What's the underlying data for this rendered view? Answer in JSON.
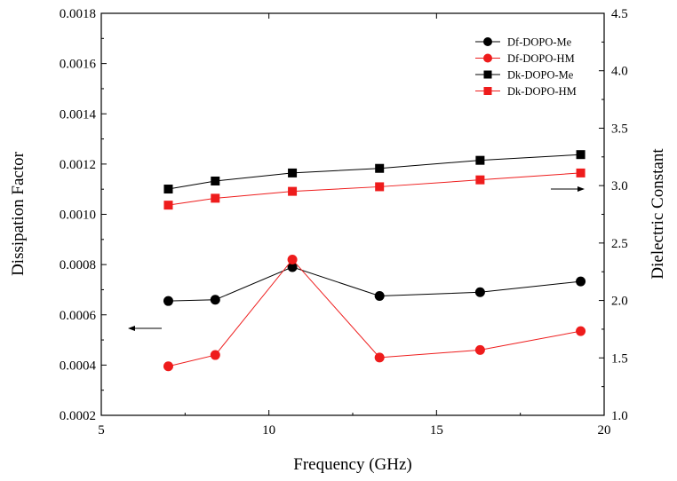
{
  "chart_data": {
    "type": "line",
    "title": "",
    "xlabel": "Frequency (GHz)",
    "ylabel_left": "Dissipation Factor",
    "ylabel_right": "Dielectric Constant",
    "xlim": [
      5,
      20
    ],
    "ylim_left": [
      0.0002,
      0.0018
    ],
    "ylim_right": [
      1.0,
      4.5
    ],
    "x_ticks": [
      "5",
      "10",
      "15",
      "20"
    ],
    "y_left_ticks": [
      "0.0002",
      "0.0004",
      "0.0006",
      "0.0008",
      "0.0010",
      "0.0012",
      "0.0014",
      "0.0016",
      "0.0018"
    ],
    "y_right_ticks": [
      "1.0",
      "1.5",
      "2.0",
      "2.5",
      "3.0",
      "3.5",
      "4.0",
      "4.5"
    ],
    "grid": false,
    "legend_position": "top-right",
    "x": [
      7.0,
      8.4,
      10.7,
      13.3,
      16.3,
      19.3
    ],
    "series": [
      {
        "name": "Df-DOPO-Me",
        "axis": "left",
        "marker": "circle",
        "color": "#000000",
        "values": [
          0.000655,
          0.00066,
          0.00079,
          0.000675,
          0.00069,
          0.000733
        ]
      },
      {
        "name": "Df-DOPO-HM",
        "axis": "left",
        "marker": "circle",
        "color": "#ee1c1c",
        "values": [
          0.000395,
          0.00044,
          0.00082,
          0.00043,
          0.00046,
          0.000535
        ]
      },
      {
        "name": "Dk-DOPO-Me",
        "axis": "right",
        "marker": "square",
        "color": "#000000",
        "values": [
          2.97,
          3.04,
          3.11,
          3.15,
          3.22,
          3.27
        ]
      },
      {
        "name": "Dk-DOPO-HM",
        "axis": "right",
        "marker": "square",
        "color": "#ee1c1c",
        "values": [
          2.83,
          2.89,
          2.95,
          2.99,
          3.05,
          3.11
        ]
      }
    ],
    "annotations": [
      {
        "type": "arrow",
        "direction": "left",
        "points_to": "left-axis"
      },
      {
        "type": "arrow",
        "direction": "right",
        "points_to": "right-axis"
      }
    ]
  }
}
